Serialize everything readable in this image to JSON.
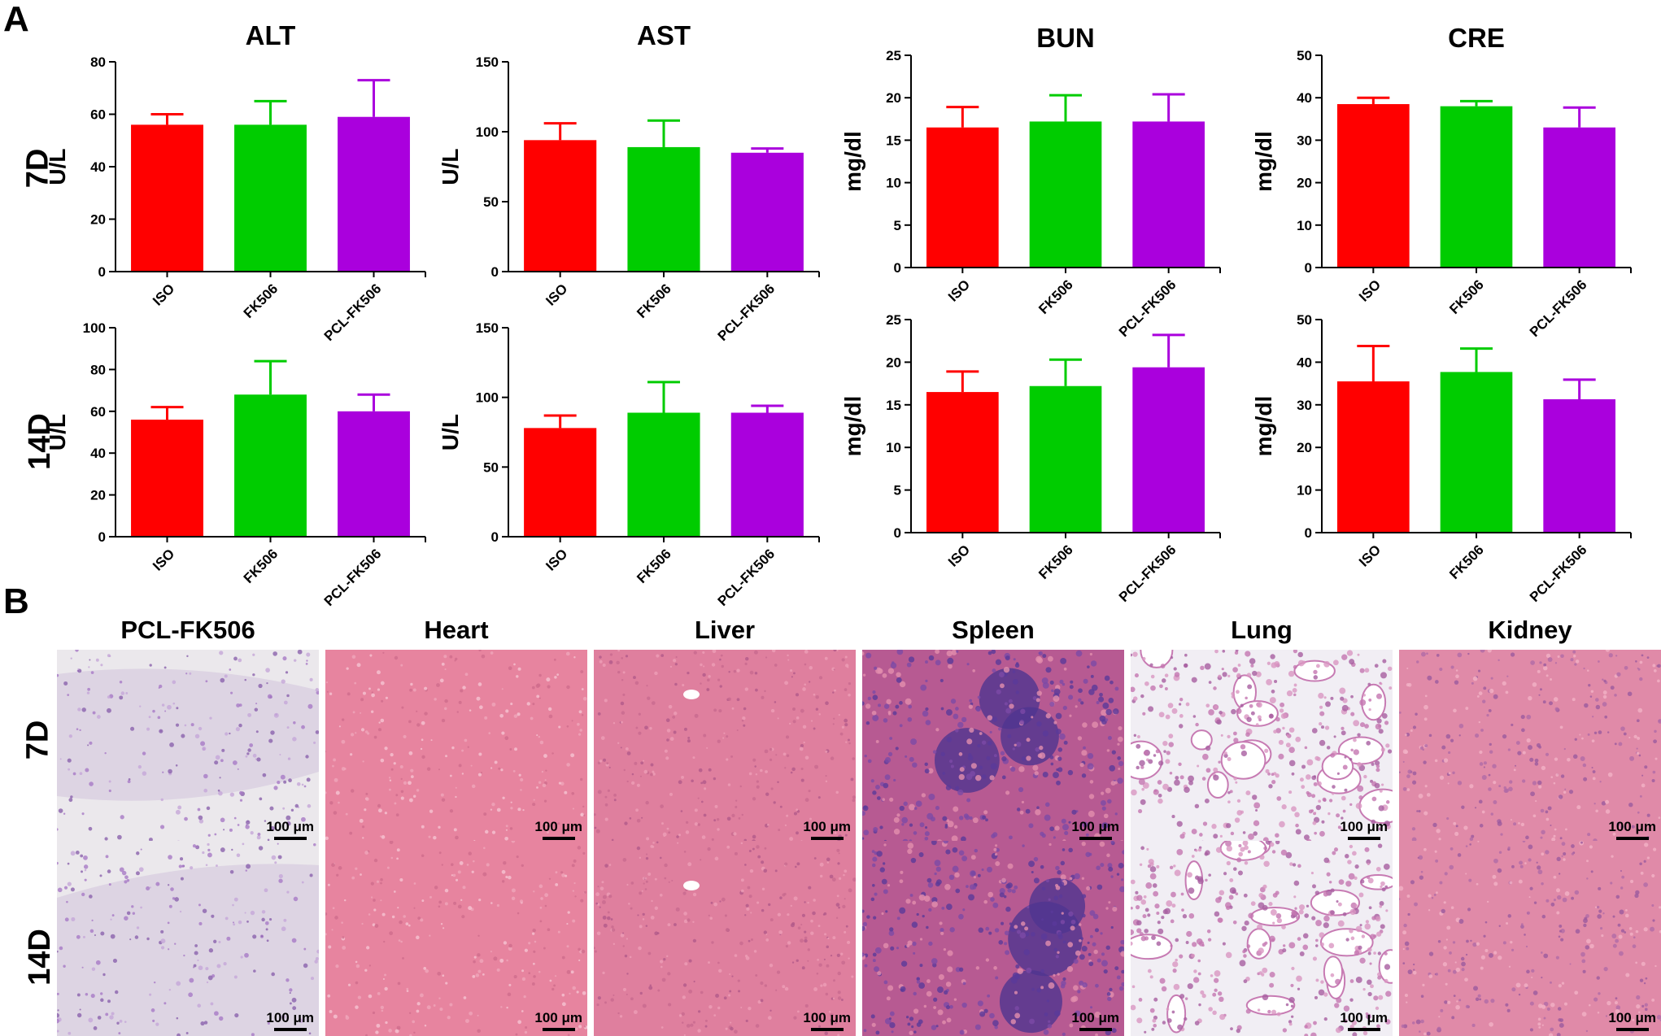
{
  "panels": {
    "A": "A",
    "B": "B"
  },
  "rows": {
    "d7": "7D",
    "d14": "14D"
  },
  "colors": {
    "ISO": "#ff0000",
    "FK506": "#00cc00",
    "PCL-FK506": "#aa00dd"
  },
  "chart_data": [
    {
      "type": "bar",
      "id": "alt_7d",
      "title": "ALT",
      "ylabel": "U/L",
      "categories": [
        "ISO",
        "FK506",
        "PCL-FK506"
      ],
      "values": [
        56,
        56,
        59
      ],
      "errors": [
        4,
        9,
        14
      ],
      "ylim": [
        0,
        80
      ],
      "yticks": [
        "0",
        "20",
        "40",
        "60",
        "80"
      ]
    },
    {
      "type": "bar",
      "id": "ast_7d",
      "title": "AST",
      "ylabel": "U/L",
      "categories": [
        "ISO",
        "FK506",
        "PCL-FK506"
      ],
      "values": [
        94,
        89,
        85
      ],
      "errors": [
        12,
        19,
        3
      ],
      "ylim": [
        0,
        150
      ],
      "yticks": [
        "0",
        "50",
        "100",
        "150"
      ]
    },
    {
      "type": "bar",
      "id": "bun_7d",
      "title": "BUN",
      "ylabel": "mg/dl",
      "categories": [
        "ISO",
        "FK506",
        "PCL-FK506"
      ],
      "values": [
        16.5,
        17.2,
        17.2
      ],
      "errors": [
        2.4,
        3.1,
        3.2
      ],
      "ylim": [
        0,
        25
      ],
      "yticks": [
        "0",
        "5",
        "10",
        "15",
        "20",
        "25"
      ]
    },
    {
      "type": "bar",
      "id": "cre_7d",
      "title": "CRE",
      "ylabel": "mg/dl",
      "categories": [
        "ISO",
        "FK506",
        "PCL-FK506"
      ],
      "values": [
        38.5,
        38,
        33
      ],
      "errors": [
        1.5,
        1.2,
        4.7
      ],
      "ylim": [
        0,
        50
      ],
      "yticks": [
        "0",
        "10",
        "20",
        "30",
        "40",
        "50"
      ]
    },
    {
      "type": "bar",
      "id": "alt_14d",
      "title": "",
      "ylabel": "U/L",
      "categories": [
        "ISO",
        "FK506",
        "PCL-FK506"
      ],
      "values": [
        56,
        68,
        60
      ],
      "errors": [
        6,
        16,
        8
      ],
      "ylim": [
        0,
        100
      ],
      "yticks": [
        "0",
        "20",
        "40",
        "60",
        "80",
        "100"
      ]
    },
    {
      "type": "bar",
      "id": "ast_14d",
      "title": "",
      "ylabel": "U/L",
      "categories": [
        "ISO",
        "FK506",
        "PCL-FK506"
      ],
      "values": [
        78,
        89,
        89
      ],
      "errors": [
        9,
        22,
        5
      ],
      "ylim": [
        0,
        150
      ],
      "yticks": [
        "0",
        "50",
        "100",
        "150"
      ]
    },
    {
      "type": "bar",
      "id": "bun_14d",
      "title": "",
      "ylabel": "mg/dl",
      "categories": [
        "ISO",
        "FK506",
        "PCL-FK506"
      ],
      "values": [
        16.5,
        17.2,
        19.4
      ],
      "errors": [
        2.4,
        3.1,
        3.8
      ],
      "ylim": [
        0,
        25
      ],
      "yticks": [
        "0",
        "5",
        "10",
        "15",
        "20",
        "25"
      ]
    },
    {
      "type": "bar",
      "id": "cre_14d",
      "title": "",
      "ylabel": "mg/dl",
      "categories": [
        "ISO",
        "FK506",
        "PCL-FK506"
      ],
      "values": [
        35.5,
        37.7,
        31.3
      ],
      "errors": [
        8.3,
        5.5,
        4.6
      ],
      "ylim": [
        0,
        50
      ],
      "yticks": [
        "0",
        "10",
        "20",
        "30",
        "40",
        "50"
      ]
    }
  ],
  "histology": {
    "titles": [
      "PCL-FK506",
      "Heart",
      "Liver",
      "Spleen",
      "Lung",
      "Kidney"
    ],
    "scalebar": "100 μm"
  }
}
